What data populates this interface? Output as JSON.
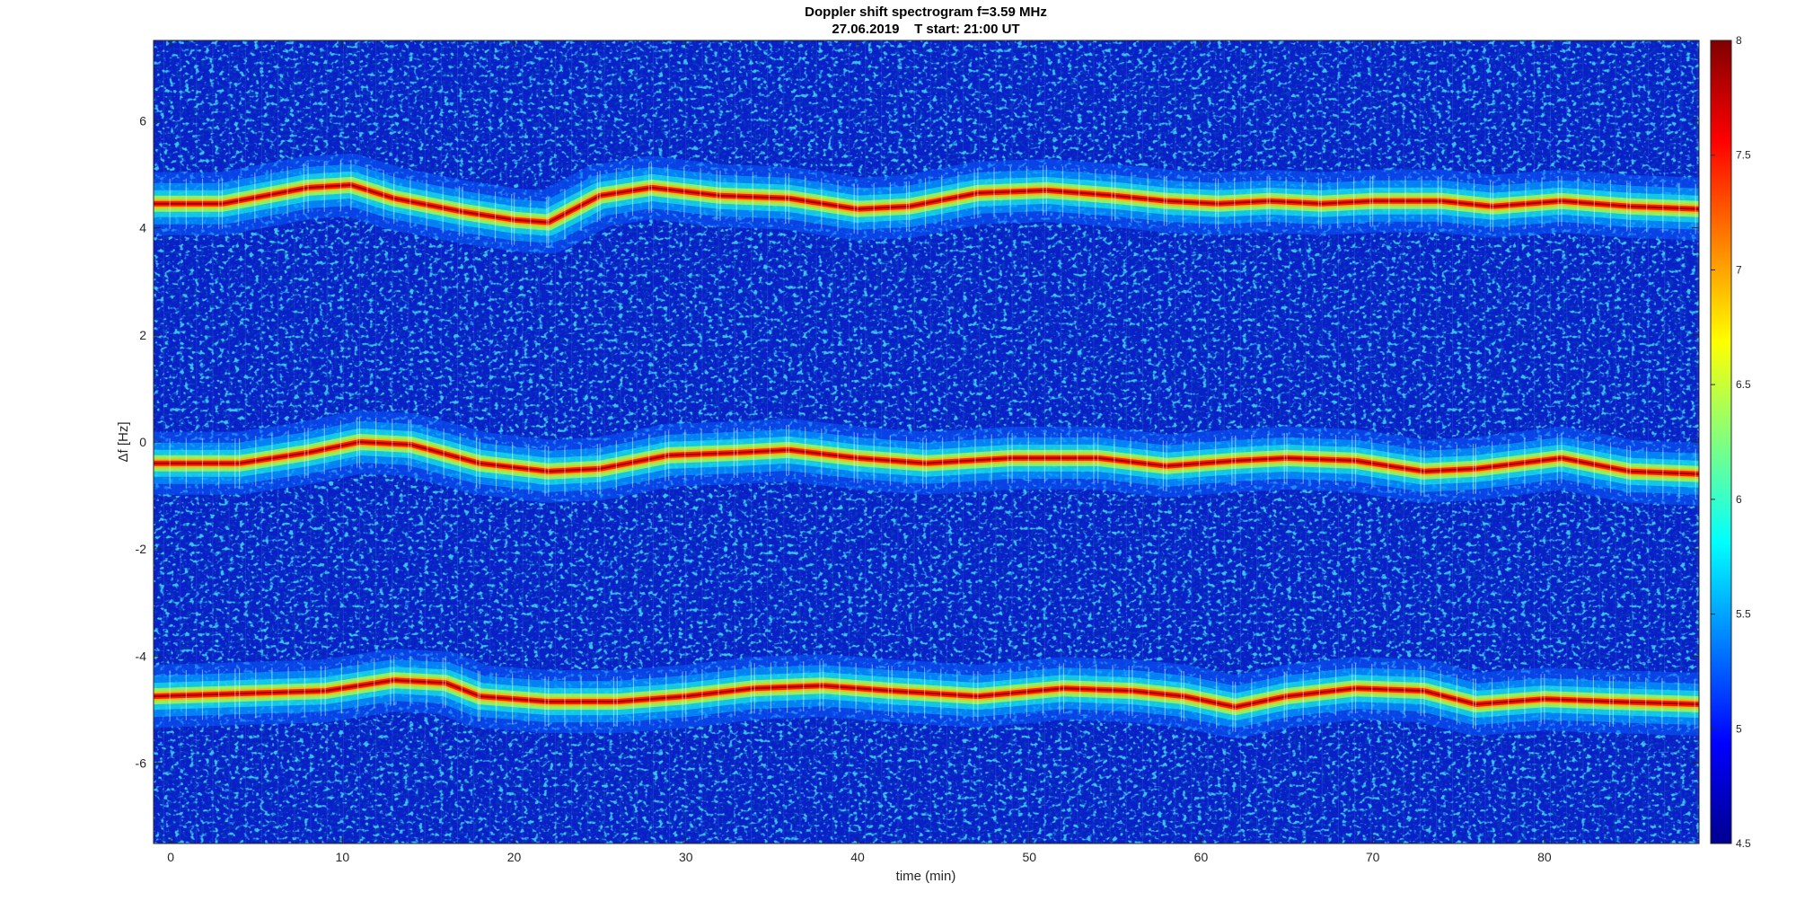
{
  "chart_data": {
    "type": "heatmap",
    "title": "Doppler shift spectrogram f=3.59 MHz",
    "subtitle": "27.06.2019    T start: 21:00 UT",
    "xlabel": "time (min)",
    "ylabel": "Δf [Hz]",
    "xlim": [
      -1,
      89
    ],
    "ylim": [
      -7.5,
      7.5
    ],
    "x_ticks": [
      0,
      10,
      20,
      30,
      40,
      50,
      60,
      70,
      80
    ],
    "y_ticks": [
      -6,
      -4,
      -2,
      0,
      2,
      4,
      6
    ],
    "colormap": "jet",
    "colorbar": {
      "limits": [
        4.5,
        8
      ],
      "ticks": [
        4.5,
        5,
        5.5,
        6,
        6.5,
        7,
        7.5,
        8
      ],
      "placement": "right"
    },
    "background_level": 5.0,
    "traces": [
      {
        "x": [
          -1,
          3,
          8,
          10.5,
          13,
          17,
          20,
          22,
          25,
          28,
          32,
          36,
          40,
          43,
          47,
          51,
          55,
          58,
          61,
          64,
          67,
          70,
          74,
          77,
          81,
          85,
          89
        ],
        "y": [
          4.45,
          4.45,
          4.75,
          4.8,
          4.55,
          4.3,
          4.15,
          4.1,
          4.6,
          4.75,
          4.6,
          4.55,
          4.35,
          4.4,
          4.65,
          4.7,
          4.6,
          4.5,
          4.45,
          4.5,
          4.45,
          4.5,
          4.5,
          4.4,
          4.5,
          4.4,
          4.35
        ]
      },
      {
        "x": [
          -1,
          4,
          8,
          11,
          14,
          18,
          22,
          25,
          29,
          33,
          36,
          40,
          44,
          49,
          54,
          58,
          62,
          65,
          69,
          73,
          76,
          81,
          85,
          89
        ],
        "y": [
          -0.4,
          -0.4,
          -0.2,
          0.0,
          -0.05,
          -0.4,
          -0.55,
          -0.5,
          -0.25,
          -0.2,
          -0.15,
          -0.3,
          -0.4,
          -0.3,
          -0.3,
          -0.45,
          -0.35,
          -0.3,
          -0.35,
          -0.55,
          -0.5,
          -0.3,
          -0.55,
          -0.6
        ]
      },
      {
        "x": [
          -1,
          4,
          9,
          13,
          16,
          18,
          22,
          26,
          30,
          34,
          38,
          42,
          47,
          52,
          56,
          59,
          62,
          65,
          69,
          73,
          76,
          80,
          84,
          89
        ],
        "y": [
          -4.75,
          -4.7,
          -4.65,
          -4.45,
          -4.5,
          -4.75,
          -4.85,
          -4.85,
          -4.75,
          -4.6,
          -4.55,
          -4.65,
          -4.75,
          -4.6,
          -4.65,
          -4.75,
          -4.95,
          -4.75,
          -4.6,
          -4.65,
          -4.9,
          -4.8,
          -4.85,
          -4.9
        ]
      }
    ]
  }
}
